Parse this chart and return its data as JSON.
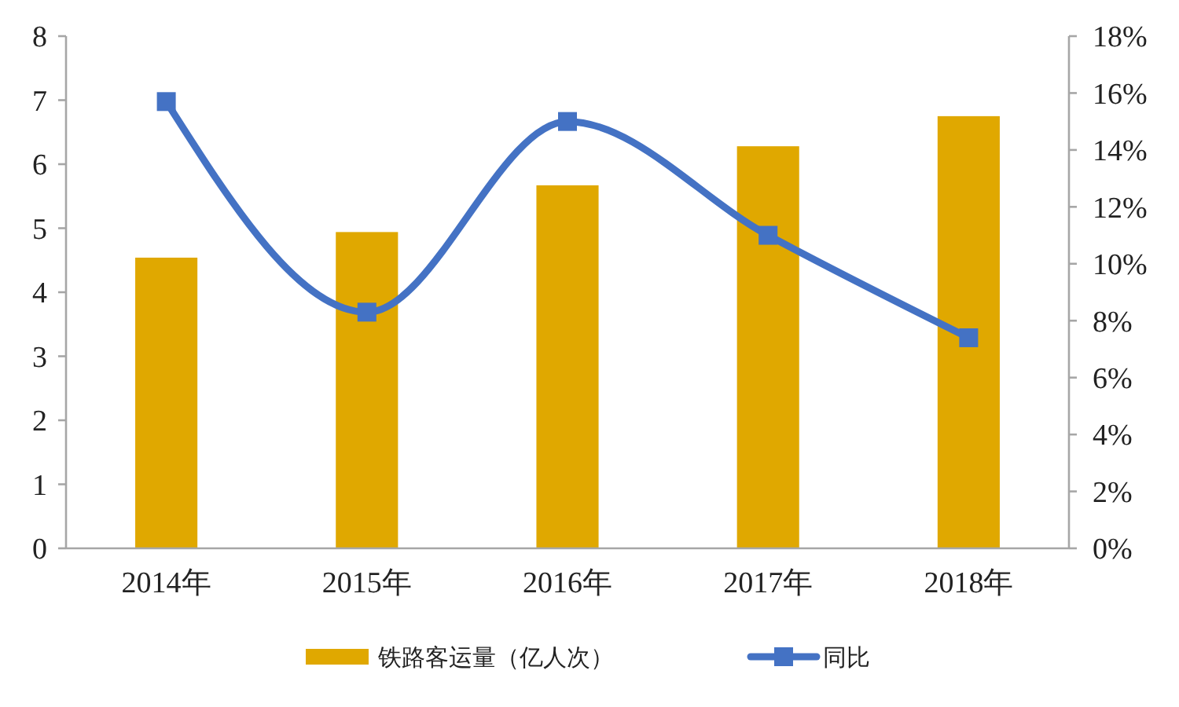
{
  "chart_data": {
    "type": "bar",
    "categories": [
      "2014年",
      "2015年",
      "2016年",
      "2017年",
      "2018年"
    ],
    "series": [
      {
        "name": "铁路客运量（亿人次）",
        "color": "#e0a800",
        "values": [
          4.54,
          4.94,
          5.67,
          6.28,
          6.75
        ]
      },
      {
        "name": "同比",
        "type": "line",
        "axis": "y2",
        "color": "#4472c4",
        "values": [
          15.7,
          8.3,
          15.0,
          11.0,
          7.4
        ]
      }
    ],
    "ylim": [
      0,
      8
    ],
    "yticks": [
      0,
      1,
      2,
      3,
      4,
      5,
      6,
      7,
      8
    ],
    "y2lim": [
      0,
      18
    ],
    "y2ticks": [
      {
        "value": 0,
        "label": "0%"
      },
      {
        "value": 2,
        "label": "2%"
      },
      {
        "value": 4,
        "label": "4%"
      },
      {
        "value": 6,
        "label": "6%"
      },
      {
        "value": 8,
        "label": "8%"
      },
      {
        "value": 10,
        "label": "10%"
      },
      {
        "value": 12,
        "label": "12%"
      },
      {
        "value": 14,
        "label": "14%"
      },
      {
        "value": 16,
        "label": "16%"
      },
      {
        "value": 18,
        "label": "18%"
      }
    ],
    "marker": "square",
    "line_style": "solid",
    "legend": "bottom",
    "grid": false
  }
}
